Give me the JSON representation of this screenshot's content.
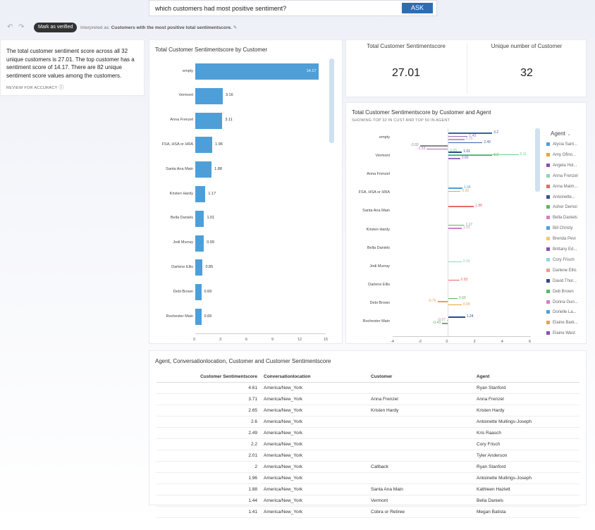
{
  "search": {
    "query": "which customers had most positive sentiment?",
    "ask_label": "ASK"
  },
  "toolbar": {
    "undo_icon": "↶",
    "redo_icon": "↷",
    "verified_label": "Mark as verified",
    "interp_prefix": "Interpreted as:",
    "interp_text": "Customers with the most positive total sentimentscore.",
    "edit_icon": "✎"
  },
  "summary": {
    "text": "The total customer sentiment score across all 32 unique customers is 27.01. The top customer has a sentiment score of 14.17. There are 82 unique sentiment score values among the customers.",
    "review": "REVIEW FOR ACCURACY",
    "info_icon": "ⓘ"
  },
  "bar_chart": {
    "title": "Total Customer Sentimentscore by Customer",
    "chart_data": {
      "type": "bar",
      "orientation": "horizontal",
      "categories": [
        "empty",
        "Vermont",
        "Anna Frenzel",
        "FSA, HSA or HRA",
        "Santa Ana Main",
        "Kristen Hardy",
        "Bella Daniels",
        "Jodi Murray",
        "Darlene Ellis",
        "Debi Brown",
        "Rochester Main"
      ],
      "values": [
        14.17,
        3.16,
        3.11,
        1.96,
        1.88,
        1.17,
        1.01,
        0.99,
        0.85,
        0.69,
        0.69
      ],
      "value_labels": [
        "14.17",
        "3.16",
        "3.11",
        "1.96",
        "1.88",
        "1.17",
        "1.01",
        "0.99",
        "0.85",
        "0.69",
        "0.69"
      ],
      "xticks": [
        "0",
        "3",
        "6",
        "9",
        "12",
        "15"
      ],
      "xlim": [
        0,
        15
      ],
      "color": "#4e9fd8"
    }
  },
  "kpi": [
    {
      "title": "Total Customer Sentimentscore",
      "value": "27.01"
    },
    {
      "title": "Unique number of Customer",
      "value": "32"
    }
  ],
  "agent_chart": {
    "title": "Total Customer Sentimentscore by Customer and Agent",
    "subtitle": "SHOWING TOP 32 IN CUST AND TOP 50 IN AGENT",
    "chart_data": {
      "type": "bar",
      "categories": [
        "empty",
        "Vermont",
        "Anna Frenzel",
        "FSA, HSA or HRA",
        "Santa Ana Main",
        "Kristen Hardy",
        "Bella Daniels",
        "Jodi Murray",
        "Darlene Ellis",
        "Debi Brown",
        "Rochester Main"
      ],
      "xticks": [
        "-4",
        "-2",
        "0",
        "2",
        "4",
        "6"
      ],
      "xlim": [
        -4,
        6
      ],
      "value_labels": [
        {
          "cat": 0,
          "value": 3.2,
          "label": "3.2",
          "color": "#3a5fa8"
        },
        {
          "cat": 0,
          "value": 1.43,
          "label": "1.43",
          "color": "#8a6fc2"
        },
        {
          "cat": 0,
          "value": 1.19,
          "label": "1.19",
          "color": "#aaa"
        },
        {
          "cat": 0,
          "value": 2.49,
          "label": "2.49",
          "color": "#3a5fa8"
        },
        {
          "cat": 0,
          "value": -2.02,
          "label": "-2.02",
          "color": "#888"
        },
        {
          "cat": 0,
          "value": -1.53,
          "label": "-1.53",
          "color": "#b06ab3"
        },
        {
          "cat": 0,
          "value": 1.01,
          "label": "1.01",
          "color": "#2e4a8a"
        },
        {
          "cat": 0,
          "value": 3.2,
          "label": "3.2",
          "color": "#8a6fc2"
        },
        {
          "cat": 0,
          "value": 0.89,
          "label": "0.89",
          "color": "#8a6fc2"
        },
        {
          "cat": 1,
          "value": 0.05,
          "label": "0.05",
          "color": "#6cd08a"
        },
        {
          "cat": 1,
          "value": 5.11,
          "label": "5.11",
          "color": "#6cd08a"
        },
        {
          "cat": 3,
          "value": 1.04,
          "label": "1.04",
          "color": "#4e9fd8"
        },
        {
          "cat": 3,
          "value": 0.92,
          "label": "0.92",
          "color": "#e8a53a"
        },
        {
          "cat": 4,
          "value": 1.88,
          "label": "1.88",
          "color": "#e86a6a"
        },
        {
          "cat": 5,
          "value": 1.17,
          "label": "1.17",
          "color": "#5cb85c"
        },
        {
          "cat": 5,
          "value": 1.01,
          "label": "1.01",
          "color": "#d67fc4"
        },
        {
          "cat": 7,
          "value": 0.99,
          "label": "0.99",
          "color": "#8fd6b0"
        },
        {
          "cat": 8,
          "value": 0.83,
          "label": "0.83",
          "color": "#e86a6a"
        },
        {
          "cat": 9,
          "value": 0.69,
          "label": "0.69",
          "color": "#5cb85c"
        },
        {
          "cat": 9,
          "value": -0.76,
          "label": "-0.76",
          "color": "#e8a53a"
        },
        {
          "cat": 9,
          "value": 0.99,
          "label": "0.99",
          "color": "#e8a53a"
        },
        {
          "cat": 10,
          "value": 1.24,
          "label": "1.24",
          "color": "#2e4a8a"
        },
        {
          "cat": 10,
          "value": -0.07,
          "label": "-0.07",
          "color": "#d67fc4"
        },
        {
          "cat": 10,
          "value": -0.43,
          "label": "-0.43",
          "color": "#5cb85c"
        }
      ]
    },
    "legend": {
      "title": "Agent",
      "items": [
        {
          "name": "Alycia Sant...",
          "color": "#4e9fd8"
        },
        {
          "name": "Amy Ofino...",
          "color": "#e8a53a"
        },
        {
          "name": "Angela Hol...",
          "color": "#8a4fb0"
        },
        {
          "name": "Anna Frenzel",
          "color": "#8fd6b0"
        },
        {
          "name": "Anna Maim...",
          "color": "#e86a6a"
        },
        {
          "name": "Antoinette...",
          "color": "#3a4f9a"
        },
        {
          "name": "Asher Demoi",
          "color": "#5cb85c"
        },
        {
          "name": "Bella Daniels",
          "color": "#d67fc4"
        },
        {
          "name": "Bill Christy",
          "color": "#4e9fd8"
        },
        {
          "name": "Brenda Pevi",
          "color": "#f0c87a"
        },
        {
          "name": "Brittany Ed...",
          "color": "#8a4fb0"
        },
        {
          "name": "Cory Frisch",
          "color": "#8fd6e0"
        },
        {
          "name": "Darlene Ellis",
          "color": "#f09a9a"
        },
        {
          "name": "David Thor...",
          "color": "#2e4a8a"
        },
        {
          "name": "Deb Brown",
          "color": "#5cb85c"
        },
        {
          "name": "Donna Gun...",
          "color": "#d67fc4"
        },
        {
          "name": "Dorielle La...",
          "color": "#4e9fd8"
        },
        {
          "name": "Elaine Bark...",
          "color": "#e8a53a"
        },
        {
          "name": "Elaine West",
          "color": "#8a4fb0"
        }
      ]
    }
  },
  "table": {
    "title": "Agent, Conversationlocation, Customer and Customer Sentimentscore",
    "columns": [
      "Customer Sentimentscore",
      "Conversationlocation",
      "Customer",
      "Agent"
    ],
    "rows": [
      [
        "4.61",
        "America/New_York",
        "",
        "Ryan Stanford"
      ],
      [
        "3.71",
        "America/New_York",
        "Anna Frenzel",
        "Anna Frenzel"
      ],
      [
        "2.65",
        "America/New_York",
        "Kristen Hardy",
        "Kristen Hardy"
      ],
      [
        "2.6",
        "America/New_York",
        "",
        "Antoinette Mullings-Joseph"
      ],
      [
        "2.49",
        "America/New_York",
        "",
        "Kris Raasch"
      ],
      [
        "2.2",
        "America/New_York",
        "",
        "Cory Frisch"
      ],
      [
        "2.01",
        "America/New_York",
        "",
        "Tyler Anderson"
      ],
      [
        "2",
        "America/New_York",
        "Callback",
        "Ryan Stanford"
      ],
      [
        "1.96",
        "America/New_York",
        "",
        "Antoinette Mullings-Joseph"
      ],
      [
        "1.88",
        "America/New_York",
        "Santa Ana Main",
        "Kathleen Hazlett"
      ],
      [
        "1.44",
        "America/New_York",
        "Vermont",
        "Bella Daniels"
      ],
      [
        "1.41",
        "America/New_York",
        "Cobra or Retiree",
        "Megan Batista"
      ]
    ]
  }
}
